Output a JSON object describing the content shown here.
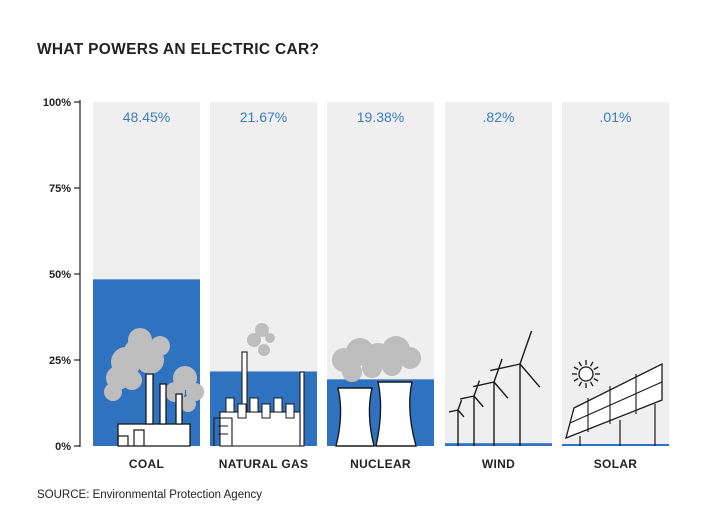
{
  "title": "WHAT POWERS AN ELECTRIC CAR?",
  "source": "SOURCE: Environmental Protection Agency",
  "colors": {
    "bar": "#2e72c0",
    "track": "#efefef",
    "value_text": "#3a7cc4",
    "icon": "#bdbdbd"
  },
  "chart_data": {
    "type": "bar",
    "categories": [
      "COAL",
      "NATURAL GAS",
      "NUCLEAR",
      "WIND",
      "SOLAR"
    ],
    "values": [
      48.45,
      21.67,
      19.38,
      0.82,
      0.01
    ],
    "value_labels": [
      "48.45%",
      "21.67%",
      "19.38%",
      ".82%",
      ".01%"
    ],
    "yticks": [
      "0%",
      "25%",
      "50%",
      "75%",
      "100%"
    ],
    "ytick_values": [
      0,
      25,
      50,
      75,
      100
    ],
    "ylim": [
      0,
      100
    ],
    "icons": [
      "coal-plant-icon",
      "gas-refinery-icon",
      "cooling-tower-icon",
      "wind-turbine-icon",
      "solar-panel-icon"
    ]
  }
}
